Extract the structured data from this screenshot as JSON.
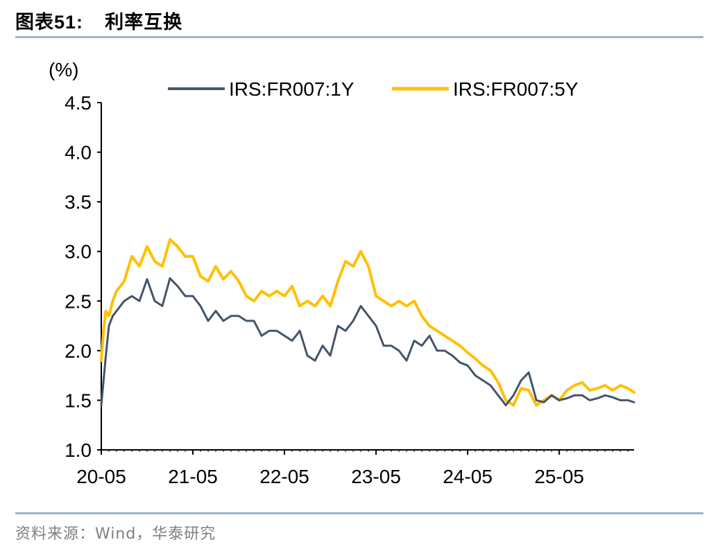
{
  "header": {
    "prefix": "图表",
    "number": "51:",
    "title": "利率互换"
  },
  "footer": {
    "source": "资料来源：Wind，华泰研究"
  },
  "chart_data": {
    "type": "line",
    "ylabel": "(%)",
    "ylim": [
      1.0,
      4.5
    ],
    "yticks": [
      "1.0",
      "1.5",
      "2.0",
      "2.5",
      "3.0",
      "3.5",
      "4.0",
      "4.5"
    ],
    "xtick_labels": [
      "20-05",
      "21-05",
      "22-05",
      "23-05",
      "24-05",
      "25-05"
    ],
    "xlim": [
      0,
      69.8
    ],
    "xtick_positions": [
      0,
      12,
      24,
      36,
      48,
      60
    ],
    "legend_position": "top",
    "grid": false,
    "series": [
      {
        "name": "IRS:FR007:1Y",
        "color": "#44546a",
        "x": [
          0,
          0.3,
          0.6,
          1,
          1.5,
          2,
          3,
          4,
          5,
          6,
          7,
          8,
          9,
          10,
          11,
          12,
          13,
          14,
          15,
          16,
          17,
          18,
          19,
          20,
          21,
          22,
          23,
          24,
          25,
          26,
          27,
          28,
          29,
          30,
          31,
          32,
          33,
          34,
          35,
          36,
          37,
          38,
          39,
          40,
          41,
          42,
          43,
          44,
          45,
          46,
          47,
          48,
          49,
          50,
          51,
          52,
          53,
          54,
          55,
          56,
          57,
          58,
          59,
          60,
          61,
          62,
          63,
          64,
          65,
          66,
          67,
          68,
          69,
          69.8
        ],
        "y": [
          1.45,
          1.7,
          1.95,
          2.25,
          2.35,
          2.4,
          2.5,
          2.55,
          2.5,
          2.72,
          2.5,
          2.45,
          2.73,
          2.65,
          2.55,
          2.55,
          2.45,
          2.3,
          2.4,
          2.3,
          2.35,
          2.35,
          2.3,
          2.3,
          2.15,
          2.2,
          2.2,
          2.15,
          2.1,
          2.2,
          1.95,
          1.9,
          2.05,
          1.95,
          2.25,
          2.2,
          2.3,
          2.45,
          2.35,
          2.25,
          2.05,
          2.05,
          2.0,
          1.9,
          2.1,
          2.05,
          2.15,
          2.0,
          2.0,
          1.95,
          1.88,
          1.85,
          1.75,
          1.7,
          1.65,
          1.55,
          1.45,
          1.55,
          1.7,
          1.78,
          1.5,
          1.48,
          1.55,
          1.5,
          1.52,
          1.55,
          1.55,
          1.5,
          1.52,
          1.55,
          1.53,
          1.5,
          1.5,
          1.48
        ]
      },
      {
        "name": "IRS:FR007:5Y",
        "color": "#ffc000",
        "x": [
          0,
          0.3,
          0.6,
          1,
          1.5,
          2,
          3,
          4,
          5,
          6,
          7,
          8,
          9,
          10,
          11,
          12,
          13,
          14,
          15,
          16,
          17,
          18,
          19,
          20,
          21,
          22,
          23,
          24,
          25,
          26,
          27,
          28,
          29,
          30,
          31,
          32,
          33,
          34,
          35,
          36,
          37,
          38,
          39,
          40,
          41,
          42,
          43,
          44,
          45,
          46,
          47,
          48,
          49,
          50,
          51,
          52,
          53,
          54,
          55,
          56,
          57,
          58,
          59,
          60,
          61,
          62,
          63,
          64,
          65,
          66,
          67,
          68,
          69,
          69.8
        ],
        "y": [
          1.9,
          2.2,
          2.4,
          2.35,
          2.5,
          2.6,
          2.7,
          2.95,
          2.85,
          3.05,
          2.9,
          2.85,
          3.12,
          3.05,
          2.95,
          2.95,
          2.75,
          2.7,
          2.85,
          2.72,
          2.8,
          2.7,
          2.55,
          2.5,
          2.6,
          2.55,
          2.6,
          2.55,
          2.65,
          2.45,
          2.5,
          2.45,
          2.55,
          2.45,
          2.7,
          2.9,
          2.85,
          3.0,
          2.85,
          2.55,
          2.5,
          2.45,
          2.5,
          2.45,
          2.5,
          2.35,
          2.25,
          2.2,
          2.15,
          2.1,
          2.05,
          1.98,
          1.92,
          1.85,
          1.8,
          1.68,
          1.5,
          1.45,
          1.62,
          1.6,
          1.45,
          1.5,
          1.55,
          1.5,
          1.6,
          1.65,
          1.68,
          1.6,
          1.62,
          1.65,
          1.6,
          1.65,
          1.62,
          1.58
        ]
      }
    ]
  }
}
